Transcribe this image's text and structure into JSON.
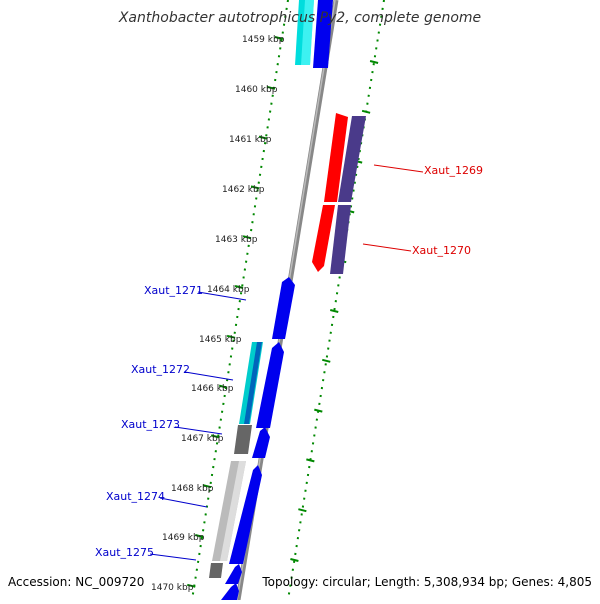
{
  "title": "Xanthobacter autotrophicus Py2, complete genome",
  "footer": {
    "accession": "Accession: NC_009720",
    "summary": "Topology: circular; Length: 5,308,934 bp; Genes: 4,805"
  },
  "colors": {
    "forward_gene": "#0000ee",
    "highlight_gene": "#ff0000",
    "highlight_partner": "#4a3a8a",
    "rna_gene": "#00cccc",
    "pseudo_gene": "#666666",
    "pseudo_light": "#bbbbbb",
    "tick": "#008800",
    "label_forward": "#0000cc",
    "label_highlight": "#dd0000",
    "backbone": "#888888"
  },
  "scale": {
    "unit": "kbp",
    "ticks": [
      "1459 kbp",
      "1460 kbp",
      "1461 kbp",
      "1462 kbp",
      "1463 kbp",
      "1464 kbp",
      "1465 kbp",
      "1466 kbp",
      "1467 kbp",
      "1468 kbp",
      "1469 kbp",
      "1470 kbp"
    ]
  },
  "gene_labels": {
    "highlighted": [
      "Xaut_1269",
      "Xaut_1270"
    ],
    "forward": [
      "Xaut_1271",
      "Xaut_1272",
      "Xaut_1273",
      "Xaut_1274",
      "Xaut_1275"
    ]
  }
}
